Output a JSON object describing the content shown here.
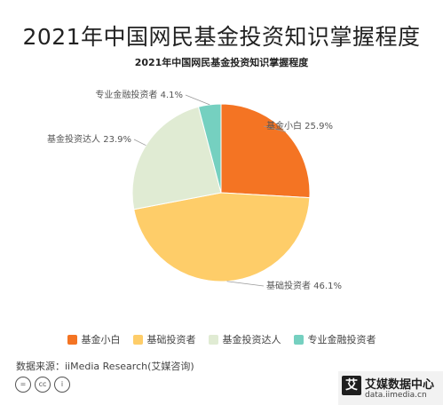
{
  "header": {
    "title": "2021年中国网民基金投资知识掌握程度"
  },
  "chart_data": {
    "type": "pie",
    "title": "2021年中国网民基金投资知识掌握程度",
    "slices": [
      {
        "name": "基金小白",
        "value": 25.9,
        "label": "基金小白 25.9%",
        "color": "#f47423"
      },
      {
        "name": "基础投资者",
        "value": 46.1,
        "label": "基础投资者 46.1%",
        "color": "#fecd69"
      },
      {
        "name": "基金投资达人",
        "value": 23.9,
        "label": "基金投资达人 23.9%",
        "color": "#e0ebd3"
      },
      {
        "name": "专业金融投资者",
        "value": 4.1,
        "label": "专业金融投资者 4.1%",
        "color": "#75d0c0"
      }
    ],
    "legend_position": "bottom"
  },
  "footer": {
    "source": "数据来源：iiMedia Research(艾媒咨询)",
    "cc_icons": [
      "=",
      "cc",
      "i"
    ],
    "brand_logo": "艾",
    "brand_name": "艾媒数据中心",
    "brand_url": "data.iimedia.cn"
  }
}
